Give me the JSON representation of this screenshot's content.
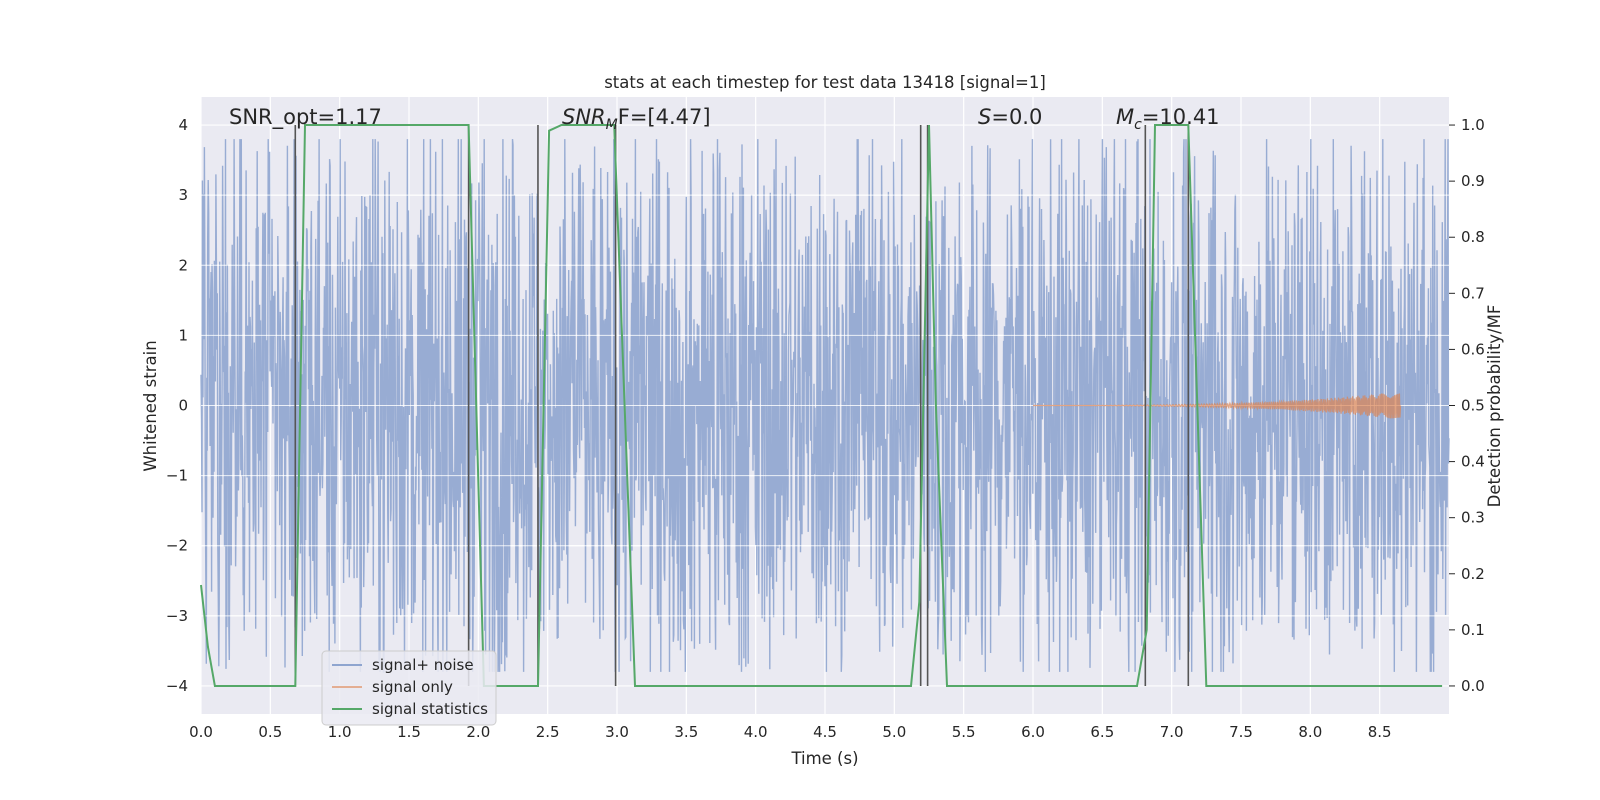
{
  "chart_data": {
    "type": "line",
    "title": "stats at each timestep for test data 13418 [signal=1]",
    "xlabel": "Time (s)",
    "ylabel": "Whitened strain",
    "ylabel_right": "Detection probability/MF",
    "xlim": [
      0,
      9
    ],
    "ylim": [
      -4.4,
      4.4
    ],
    "ylim_right": [
      -0.05,
      1.05
    ],
    "x_ticks": [
      "0.0",
      "0.5",
      "1.0",
      "1.5",
      "2.0",
      "2.5",
      "3.0",
      "3.5",
      "4.0",
      "4.5",
      "5.0",
      "5.5",
      "6.0",
      "6.5",
      "7.0",
      "7.5",
      "8.0",
      "8.5"
    ],
    "y_ticks": [
      "−4",
      "−3",
      "−2",
      "−1",
      "0",
      "1",
      "2",
      "3",
      "4"
    ],
    "y_ticks_right": [
      "0.0",
      "0.1",
      "0.2",
      "0.3",
      "0.4",
      "0.5",
      "0.6",
      "0.7",
      "0.8",
      "0.9",
      "1.0"
    ],
    "grid": true,
    "legend_position": "lower-left",
    "annotations": {
      "snr_opt": "SNR_opt=1.17",
      "snr_mf_base": "SNR",
      "snr_mf_sub": "M",
      "snr_mf_rest": "F=[4.47]",
      "s_base": "S",
      "s_rest": "=0.0",
      "mc_base": "M",
      "mc_sub": "c",
      "mc_rest": "=10.41"
    },
    "series": [
      {
        "name": "signal+ noise",
        "color": "#8fa5cf",
        "description_values": "dense noisy strain fluctuating roughly between -3.8 and 3.8 across 0-9 s",
        "x_range": [
          0,
          9
        ],
        "amplitude_typical": 2.0,
        "amplitude_peak": 3.8
      },
      {
        "name": "signal only",
        "color": "#dd8452",
        "chirp": {
          "x_start": 6.0,
          "x_end": 8.65,
          "peak_amplitude": 0.2
        }
      },
      {
        "name": "signal statistics",
        "color": "#55a868",
        "axis": "right",
        "x": [
          0.0,
          0.05,
          0.1,
          0.2,
          0.5,
          0.68,
          0.75,
          1.0,
          1.5,
          1.93,
          2.04,
          2.1,
          2.3,
          2.43,
          2.51,
          2.6,
          2.98,
          3.13,
          3.2,
          4.0,
          5.0,
          5.12,
          5.18,
          5.25,
          5.3,
          5.38,
          5.5,
          6.0,
          6.5,
          6.75,
          6.82,
          6.88,
          7.0,
          7.12,
          7.25,
          7.5,
          8.0,
          8.5,
          8.95
        ],
        "y": [
          0.18,
          0.07,
          0.0,
          0.0,
          0.0,
          0.0,
          1.0,
          1.0,
          1.0,
          1.0,
          0.0,
          0.0,
          0.0,
          0.0,
          0.99,
          1.0,
          1.0,
          0.0,
          0.0,
          0.0,
          0.0,
          0.0,
          0.15,
          1.0,
          0.5,
          0.0,
          0.0,
          0.0,
          0.0,
          0.0,
          0.1,
          1.0,
          1.0,
          1.0,
          0.0,
          0.0,
          0.0,
          0.0,
          0.0
        ]
      }
    ],
    "vertical_lines": {
      "color": "#555555",
      "x": [
        0.68,
        1.93,
        2.43,
        2.99,
        5.19,
        5.24,
        6.81,
        7.12
      ]
    }
  }
}
